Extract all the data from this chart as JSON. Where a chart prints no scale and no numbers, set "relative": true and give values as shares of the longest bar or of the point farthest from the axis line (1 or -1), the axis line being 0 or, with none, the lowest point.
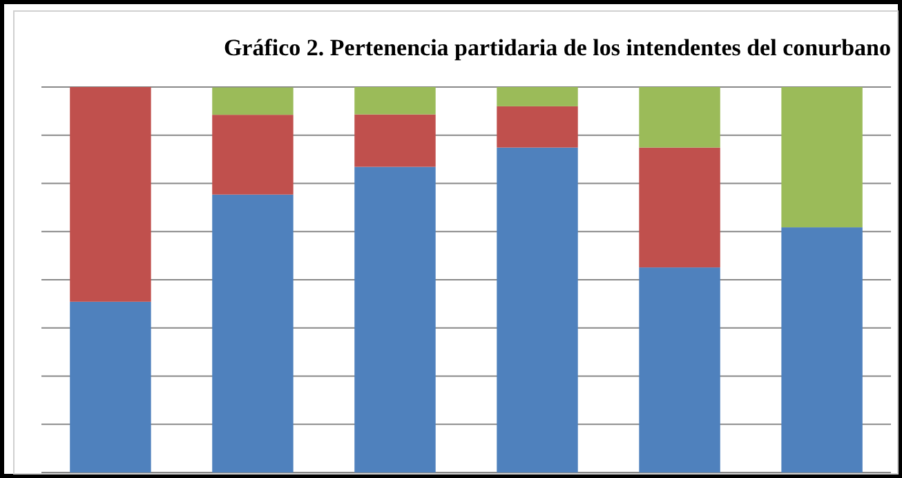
{
  "chart_data": {
    "type": "bar",
    "title": "Gráfico 2. Pertenencia partidaria de los intendentes del conurbano",
    "categories": [
      null,
      null,
      null,
      null,
      null,
      null
    ],
    "relative": true,
    "stacked": true,
    "grid": true,
    "series": [
      {
        "color": "#4f81bd",
        "values": [
          0.443,
          0.721,
          0.793,
          0.843,
          0.532,
          0.636
        ]
      },
      {
        "color": "#c0504d",
        "values": [
          0.557,
          0.207,
          0.136,
          0.107,
          0.311,
          0
        ]
      },
      {
        "color": "#9bbb59",
        "values": [
          0,
          0.071,
          0.071,
          0.05,
          0.157,
          0.364
        ]
      }
    ]
  }
}
